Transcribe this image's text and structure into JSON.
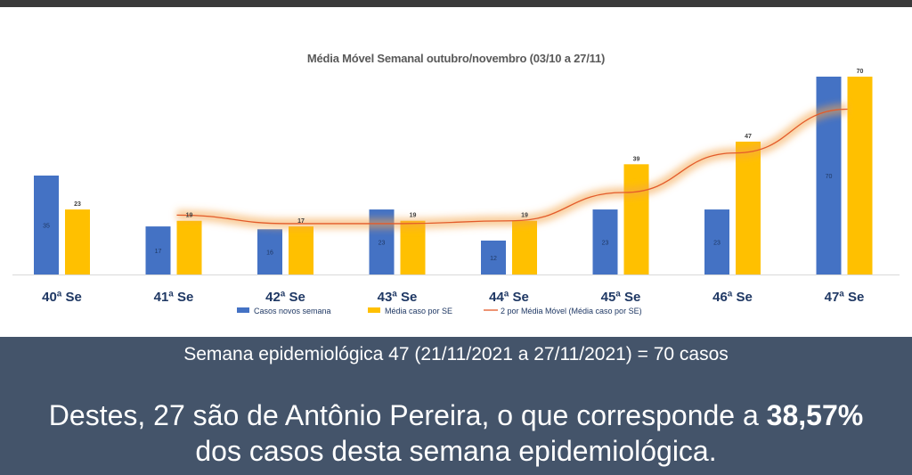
{
  "chart_data": {
    "type": "bar",
    "title": "Média Móvel Semanal outubro/novembro (03/10 a 27/11)",
    "categories": [
      "40ª Se",
      "41ª Se",
      "42ª Se",
      "43ª Se",
      "44ª Se",
      "45ª Se",
      "46ª Se",
      "47ª Se"
    ],
    "series": [
      {
        "name": "Casos novos semana",
        "type": "bar",
        "color": "#4472c4",
        "values": [
          35,
          17,
          16,
          23,
          12,
          23,
          23,
          70
        ]
      },
      {
        "name": "Média caso por SE",
        "type": "bar",
        "color": "#ffc000",
        "values": [
          23,
          19,
          17,
          19,
          19,
          39,
          47,
          70
        ]
      },
      {
        "name": "2 por Média Móvel (Média caso por SE)",
        "type": "line",
        "color": "#e35b2a",
        "values": [
          null,
          21,
          18,
          18,
          19,
          29,
          43,
          58.5
        ]
      }
    ],
    "ylim": [
      0,
      70
    ],
    "legend_position": "bottom",
    "grid": false
  },
  "panel": {
    "subtitle": "Semana epidemiológica 47 (21/11/2021 a 27/11/2021) = 70 casos",
    "statement_prefix": "Destes, 27 são de Antônio Pereira, o que corresponde a ",
    "statement_percent": "38,57%",
    "statement_suffix": "dos casos desta semana epidemiológica."
  },
  "colors": {
    "panel_background": "#44546a",
    "blue_bar": "#4472c4",
    "yellow_bar": "#ffc000",
    "trend_line": "#e35b2a"
  }
}
